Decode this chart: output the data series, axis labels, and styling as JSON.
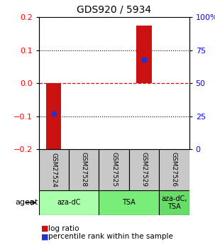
{
  "title": "GDS920 / 5934",
  "samples": [
    "GSM27524",
    "GSM27528",
    "GSM27525",
    "GSM27529",
    "GSM27526"
  ],
  "log_ratios": [
    -0.21,
    0.0,
    0.0,
    0.175,
    0.0
  ],
  "percentile_ranks_pct": [
    27,
    0,
    0,
    68,
    0
  ],
  "ylim": [
    -0.2,
    0.2
  ],
  "y_ticks_left": [
    -0.2,
    -0.1,
    0.0,
    0.1,
    0.2
  ],
  "y_ticks_right": [
    0,
    25,
    50,
    75,
    100
  ],
  "agent_groups": [
    {
      "label": "aza-dC",
      "span": [
        0,
        2
      ],
      "color": "#aaffaa"
    },
    {
      "label": "TSA",
      "span": [
        2,
        4
      ],
      "color": "#77ee77"
    },
    {
      "label": "aza-dC,\nTSA",
      "span": [
        4,
        5
      ],
      "color": "#66dd66"
    }
  ],
  "bar_color": "#cc1111",
  "blue_color": "#2233cc",
  "bar_width": 0.5,
  "zero_line_color": "#cc1111",
  "background_color": "#ffffff",
  "sample_box_color": "#c8c8c8",
  "agent_label": "agent",
  "legend_items": [
    {
      "color": "#cc1111",
      "label": " log ratio"
    },
    {
      "color": "#2233cc",
      "label": " percentile rank within the sample"
    }
  ]
}
